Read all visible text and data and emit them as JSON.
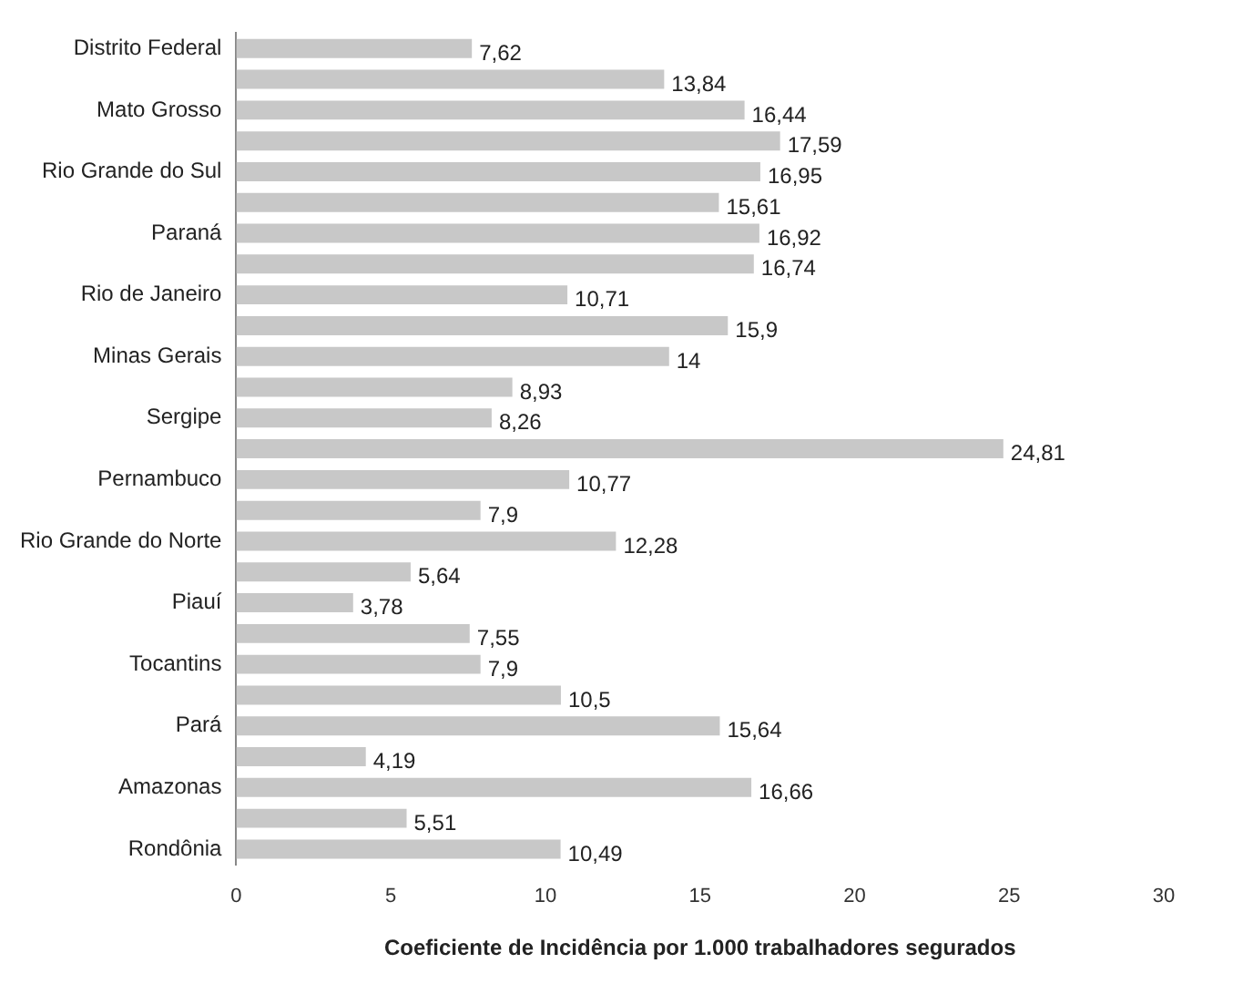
{
  "chart_data": {
    "type": "bar",
    "orientation": "horizontal",
    "xlabel": "Coeficiente de Incidência por 1.000 trabalhadores segurados",
    "categories": [
      "Distrito Federal",
      null,
      "Mato Grosso",
      null,
      "Rio Grande do Sul",
      null,
      "Paraná",
      null,
      "Rio de Janeiro",
      null,
      "Minas Gerais",
      null,
      "Sergipe",
      null,
      "Pernambuco",
      null,
      "Rio Grande do Norte",
      null,
      "Piauí",
      null,
      "Tocantins",
      null,
      "Pará",
      null,
      "Amazonas",
      null,
      "Rondônia"
    ],
    "values": [
      7.62,
      13.84,
      16.44,
      17.59,
      16.95,
      15.61,
      16.92,
      16.74,
      10.71,
      15.9,
      14,
      8.93,
      8.26,
      24.81,
      10.77,
      7.9,
      12.28,
      5.64,
      3.78,
      7.55,
      7.9,
      10.5,
      15.64,
      4.19,
      16.66,
      5.51,
      10.49
    ],
    "value_labels": [
      "7,62",
      "13,84",
      "16,44",
      "17,59",
      "16,95",
      "15,61",
      "16,92",
      "16,74",
      "10,71",
      "15,9",
      "14",
      "8,93",
      "8,26",
      "24,81",
      "10,77",
      "7,9",
      "12,28",
      "5,64",
      "3,78",
      "7,55",
      "7,9",
      "10,5",
      "15,64",
      "4,19",
      "16,66",
      "5,51",
      "10,49"
    ],
    "color": "#c8c8c8",
    "xlim": [
      0,
      30
    ],
    "xticks": [
      0,
      5,
      10,
      15,
      20,
      25,
      30
    ],
    "grid": false,
    "legend": false
  }
}
